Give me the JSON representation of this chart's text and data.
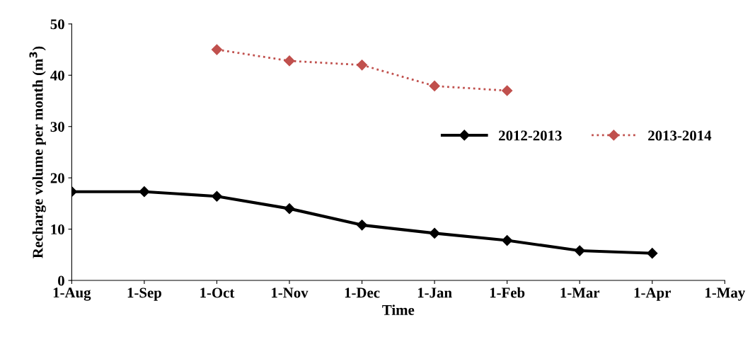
{
  "chart_data": {
    "type": "line",
    "xlabel": "Time",
    "ylabel": "Recharge volume per month (m$^{3}$)",
    "categories": [
      "1-Aug",
      "1-Sep",
      "1-Oct",
      "1-Nov",
      "1-Dec",
      "1-Jan",
      "1-Feb",
      "1-Mar",
      "1-Apr",
      "1-May"
    ],
    "series": [
      {
        "name": "2012-2013",
        "color": "#000000",
        "line_style": "solid",
        "values": [
          17.3,
          17.3,
          16.4,
          14.0,
          10.8,
          9.2,
          7.8,
          5.8,
          5.3,
          null
        ]
      },
      {
        "name": "2013-2014",
        "color": "#c0504d",
        "line_style": "dotted",
        "values": [
          null,
          null,
          45.0,
          42.8,
          42.0,
          37.9,
          37.0,
          null,
          null,
          null
        ]
      }
    ],
    "ylim": [
      0,
      50
    ],
    "yticks": [
      0,
      10,
      20,
      30,
      40,
      50
    ],
    "grid": false,
    "legend": "right",
    "marker": "diamond"
  }
}
